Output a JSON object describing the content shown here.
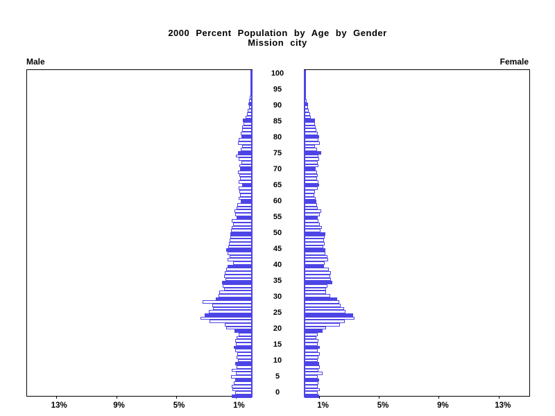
{
  "header": {
    "title": "2000 Percent Population by Age by Gender",
    "subtitle": "Mission city"
  },
  "axis_labels": {
    "left": "Male",
    "right": "Female"
  },
  "colors": {
    "bar_outline": "#4d44e6",
    "bar_highlight_fill": "#4d44e6",
    "bar_plain_fill": "#ffffff",
    "axis_line": "#000000",
    "center_axis": "#4d44e6",
    "text": "#000000"
  },
  "chart_data": {
    "type": "bar",
    "variant": "population_pyramid",
    "title": "2000 Percent Population by Age by Gender",
    "subtitle": "Mission city",
    "unit": "percent of total population",
    "orientation": "horizontal, male bars extend left, female bars extend right",
    "age_min": 0,
    "age_max": 100,
    "age_tick_interval": 5,
    "age_tick_labels": [
      "0",
      "5",
      "10",
      "15",
      "20",
      "25",
      "30",
      "35",
      "40",
      "45",
      "50",
      "55",
      "60",
      "65",
      "70",
      "75",
      "80",
      "85",
      "90",
      "95",
      "100"
    ],
    "pct_ticks": [
      1,
      5,
      9,
      13
    ],
    "pct_tick_labels": [
      "1%",
      "5%",
      "9%",
      "13%"
    ],
    "pct_axis_max": 15,
    "highlight_rule": "bars for ages divisible by 5 are solid blue; other ages are white with blue outline",
    "series": [
      {
        "name": "Male",
        "side": "left",
        "values": [
          1.33,
          1.13,
          1.3,
          1.33,
          1.22,
          1.13,
          1.4,
          1.05,
          1.36,
          1.02,
          1.1,
          0.92,
          1.02,
          0.98,
          1.1,
          1.2,
          1.06,
          1.13,
          1.02,
          0.89,
          1.16,
          1.7,
          1.8,
          2.82,
          3.42,
          3.15,
          2.87,
          2.6,
          2.65,
          3.3,
          2.41,
          2.22,
          2.18,
          1.87,
          1.94,
          1.98,
          1.76,
          1.87,
          1.79,
          1.71,
          1.6,
          1.25,
          1.63,
          1.48,
          1.6,
          1.71,
          1.56,
          1.51,
          1.5,
          1.42,
          1.44,
          1.4,
          1.36,
          1.25,
          1.33,
          1.02,
          1.1,
          1.17,
          1.02,
          0.97,
          0.74,
          0.86,
          0.79,
          0.83,
          0.86,
          0.66,
          0.9,
          0.79,
          0.83,
          0.93,
          0.77,
          0.82,
          0.71,
          0.86,
          1.05,
          0.94,
          0.74,
          0.63,
          0.94,
          0.86,
          0.71,
          0.74,
          0.63,
          0.66,
          0.56,
          0.59,
          0.4,
          0.32,
          0.28,
          0.2,
          0.22,
          0.17,
          0.12,
          0.1,
          0.08,
          0.06,
          0.05,
          0.04,
          0.03,
          0.02,
          0.02
        ]
      },
      {
        "name": "Female",
        "side": "right",
        "values": [
          0.97,
          0.86,
          1.02,
          0.89,
          0.94,
          0.99,
          0.89,
          1.2,
          0.94,
          1.02,
          0.99,
          0.86,
          0.94,
          1.02,
          0.89,
          1.02,
          0.86,
          0.94,
          0.79,
          0.89,
          1.22,
          1.45,
          2.38,
          2.7,
          3.33,
          3.23,
          2.72,
          2.64,
          2.41,
          2.33,
          2.18,
          1.71,
          1.43,
          1.45,
          1.55,
          1.83,
          1.76,
          1.7,
          1.75,
          1.6,
          1.28,
          1.36,
          1.59,
          1.53,
          1.39,
          1.39,
          1.25,
          1.33,
          1.3,
          1.35,
          1.37,
          1.06,
          1.17,
          1.02,
          0.94,
          0.89,
          1.02,
          1.13,
          0.86,
          0.82,
          0.79,
          0.74,
          0.63,
          0.7,
          0.86,
          0.99,
          0.94,
          0.83,
          0.9,
          0.83,
          0.74,
          0.94,
          0.86,
          0.99,
          0.94,
          1.1,
          0.83,
          0.71,
          1.02,
          0.94,
          0.99,
          0.86,
          0.79,
          0.74,
          0.68,
          0.71,
          0.4,
          0.37,
          0.29,
          0.25,
          0.22,
          0.14,
          0.09,
          0.1,
          0.07,
          0.06,
          0.05,
          0.04,
          0.03,
          0.02,
          0.02
        ]
      }
    ],
    "legend": "none",
    "grid": "off"
  }
}
